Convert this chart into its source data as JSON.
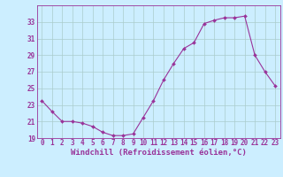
{
  "hours": [
    0,
    1,
    2,
    3,
    4,
    5,
    6,
    7,
    8,
    9,
    10,
    11,
    12,
    13,
    14,
    15,
    16,
    17,
    18,
    19,
    20,
    21,
    22,
    23
  ],
  "values": [
    23.5,
    22.2,
    21.0,
    21.0,
    20.8,
    20.4,
    19.7,
    19.3,
    19.3,
    19.5,
    21.5,
    23.5,
    26.0,
    28.0,
    29.8,
    30.5,
    32.8,
    33.2,
    33.5,
    33.5,
    33.7,
    29.0,
    27.0,
    25.3
  ],
  "line_color": "#993399",
  "marker": "D",
  "marker_size": 2.0,
  "bg_color": "#cceeff",
  "grid_color": "#aacccc",
  "xlabel": "Windchill (Refroidissement éolien,°C)",
  "ylim": [
    19,
    35
  ],
  "xlim": [
    -0.5,
    23.5
  ],
  "yticks": [
    19,
    21,
    23,
    25,
    27,
    29,
    31,
    33
  ],
  "xticks": [
    0,
    1,
    2,
    3,
    4,
    5,
    6,
    7,
    8,
    9,
    10,
    11,
    12,
    13,
    14,
    15,
    16,
    17,
    18,
    19,
    20,
    21,
    22,
    23
  ],
  "tick_label_fontsize": 5.5,
  "xlabel_fontsize": 6.5
}
